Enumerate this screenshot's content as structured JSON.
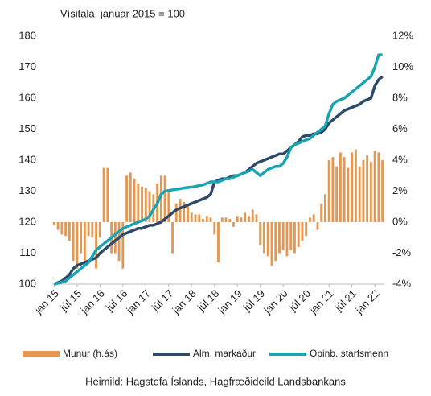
{
  "chart_data": {
    "type": "bar-line",
    "title": "Vísitala, janúar 2015 = 100",
    "source": "Heimild: Hagstofa Íslands, Hagfræðideild Landsbankans",
    "categories": [
      "jan 15",
      null,
      null,
      null,
      null,
      null,
      "júl 15",
      null,
      null,
      null,
      null,
      null,
      "jan 16",
      null,
      null,
      null,
      null,
      null,
      "júl 16",
      null,
      null,
      null,
      null,
      null,
      "jan 17",
      null,
      null,
      null,
      null,
      null,
      "júl 17",
      null,
      null,
      null,
      null,
      null,
      "jan 18",
      null,
      null,
      null,
      null,
      null,
      "júl 18",
      null,
      null,
      null,
      null,
      null,
      "jan 19",
      null,
      null,
      null,
      null,
      null,
      "júl 19",
      null,
      null,
      null,
      null,
      null,
      "jan 20",
      null,
      null,
      null,
      null,
      null,
      "júl 20",
      null,
      null,
      null,
      null,
      null,
      "jan 21",
      null,
      null,
      null,
      null,
      null,
      "júl 21",
      null,
      null,
      null,
      null,
      null,
      "jan 22",
      null,
      null
    ],
    "series": [
      {
        "name": "Munur (h.ás)",
        "color": "#e5974f",
        "kind": "bar",
        "axis": "y2",
        "values": [
          -0.2,
          -0.5,
          -0.8,
          -0.9,
          -1.2,
          -2.5,
          -3,
          -2,
          -2.5,
          -0.9,
          -1,
          -3,
          -1,
          3.5,
          3.5,
          -2,
          -2,
          -2.5,
          -3,
          3,
          3.2,
          2.8,
          2.5,
          2.3,
          2.2,
          2,
          1.8,
          2.5,
          3,
          3,
          2,
          -2,
          1.2,
          1.5,
          1.3,
          1,
          0.6,
          0.5,
          0.5,
          0.2,
          0.4,
          0.3,
          -0.8,
          -2.6,
          0.3,
          0.3,
          0.2,
          -0.3,
          0.4,
          0.3,
          0.6,
          0.4,
          0.8,
          0.5,
          -1.5,
          -2,
          -2.2,
          -2.8,
          -2.5,
          -2,
          -1.8,
          -2.2,
          -1.8,
          -2,
          -1.6,
          -1.2,
          -0.9,
          0.3,
          0.5,
          -0.5,
          1.2,
          1.8,
          4,
          4.2,
          3.6,
          4.5,
          4.2,
          3.5,
          4.5,
          4.7,
          3.6,
          4,
          4.3,
          3.9,
          4.6,
          4.5,
          4
        ]
      },
      {
        "name": "Alm. markaður",
        "color": "#2e4a6b",
        "kind": "line",
        "values": [
          100,
          100.5,
          101,
          102,
          103,
          105,
          106,
          106.5,
          107,
          107.5,
          108,
          108.5,
          110,
          111,
          112,
          113,
          114,
          115,
          116,
          116.5,
          117,
          117.5,
          118,
          118,
          118.5,
          119,
          119,
          119.5,
          120,
          121,
          122,
          123,
          124,
          124.5,
          125,
          125.5,
          126,
          126.5,
          127,
          127.5,
          128,
          129,
          133,
          133.5,
          134,
          134,
          134.5,
          135,
          135,
          135.5,
          136,
          137,
          138,
          139,
          139.5,
          140,
          140.5,
          141,
          141.5,
          142,
          142,
          143,
          144,
          145,
          146,
          147.5,
          148,
          148,
          148.5,
          148.5,
          149,
          150,
          152,
          153,
          154,
          155,
          156,
          156.5,
          157,
          157.5,
          158,
          159,
          159.5,
          160,
          164,
          166,
          167
        ]
      },
      {
        "name": "Opinb. starfsmenn",
        "color": "#1aa3b0",
        "kind": "line",
        "values": [
          100,
          100.3,
          100.6,
          101,
          102,
          103,
          104,
          105,
          106,
          107,
          109,
          111,
          112,
          113,
          114,
          115,
          116,
          117,
          118,
          118.5,
          119,
          119.5,
          120,
          120.5,
          121,
          122,
          124,
          126,
          129,
          130,
          130.2,
          130.4,
          130.6,
          130.8,
          131,
          131.2,
          131.3,
          131.5,
          131.8,
          132,
          132.5,
          133,
          133,
          133,
          133.5,
          134,
          134,
          134.5,
          135,
          135.5,
          136,
          136.5,
          137,
          136,
          135,
          136,
          137,
          137.5,
          138,
          138,
          139,
          141,
          144,
          145,
          145.5,
          146,
          146.5,
          147,
          148,
          149,
          150,
          151,
          155,
          158,
          159,
          159.5,
          160,
          161,
          162,
          163,
          164,
          165,
          166,
          167,
          170,
          174,
          174
        ]
      }
    ],
    "ylim": [
      100,
      180
    ],
    "yticks": [
      100,
      110,
      120,
      130,
      140,
      150,
      160,
      170,
      180
    ],
    "y2lim": [
      -4,
      12
    ],
    "y2ticks": [
      {
        "value": -4,
        "label": "-4%"
      },
      {
        "value": -2,
        "label": "-2%"
      },
      {
        "value": 0,
        "label": "0%"
      },
      {
        "value": 2,
        "label": "2%"
      },
      {
        "value": 4,
        "label": "4%"
      },
      {
        "value": 6,
        "label": "6%"
      },
      {
        "value": 8,
        "label": "8%"
      },
      {
        "value": 10,
        "label": "10%"
      },
      {
        "value": 12,
        "label": "12%"
      }
    ]
  }
}
